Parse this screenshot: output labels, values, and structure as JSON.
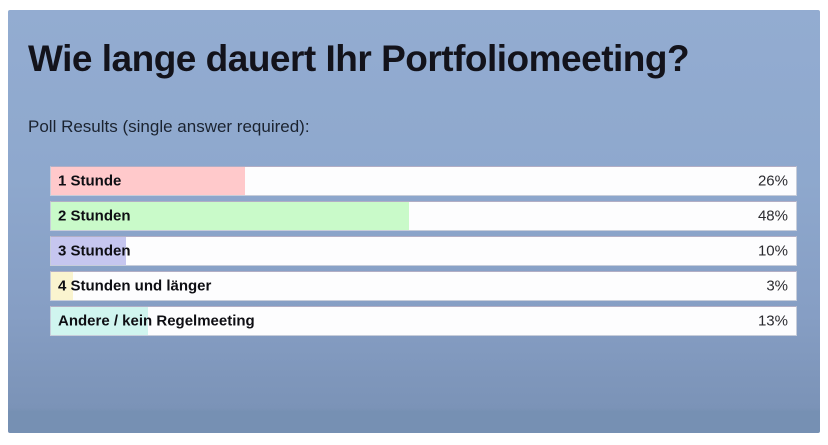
{
  "title": "Wie lange dauert Ihr Portfoliomeeting?",
  "subtitle": "Poll Results (single answer required):",
  "colors": {
    "panel_background_top": "#93acd1",
    "panel_background_bottom": "#7690b3",
    "frame_background": "#ffffff",
    "row_background": "#fdfdfe",
    "title_text": "#13131b",
    "bar_pink": "#ffc9cb",
    "bar_green": "#c9fac9",
    "bar_lavender": "#c6c6ef",
    "bar_yellow": "#faf4cf",
    "bar_cyan": "#d0f5ef"
  },
  "chart_data": {
    "type": "bar",
    "orientation": "horizontal",
    "title": "Wie lange dauert Ihr Portfoliomeeting?",
    "subtitle": "Poll Results (single answer required):",
    "categories": [
      "1 Stunde",
      "2 Stunden",
      "3 Stunden",
      "4 Stunden und länger",
      "Andere / kein Regelmeeting"
    ],
    "values": [
      26,
      48,
      10,
      3,
      13
    ],
    "unit": "%",
    "value_labels": [
      "26%",
      "48%",
      "10%",
      "3%",
      "13%"
    ],
    "bar_colors": [
      "#ffc9cb",
      "#c9fac9",
      "#c6c6ef",
      "#faf4cf",
      "#d0f5ef"
    ],
    "xlim": [
      0,
      100
    ],
    "grid": false,
    "legend": false,
    "value_label_position": "right-inside-bar-track"
  },
  "poll": {
    "options": [
      {
        "label": "1 Stunde",
        "value_label": "26%",
        "pct": 26,
        "color": "#ffc9cb",
        "fill_style": "width:26%;background-color:#ffc9cb;"
      },
      {
        "label": "2 Stunden",
        "value_label": "48%",
        "pct": 48,
        "color": "#c9fac9",
        "fill_style": "width:48%;background-color:#c9fac9;"
      },
      {
        "label": "3 Stunden",
        "value_label": "10%",
        "pct": 10,
        "color": "#c6c6ef",
        "fill_style": "width:10%;background-color:#c6c6ef;"
      },
      {
        "label": "4 Stunden und länger",
        "value_label": "3%",
        "pct": 3,
        "color": "#faf4cf",
        "fill_style": "width:3%;background-color:#faf4cf;"
      },
      {
        "label": "Andere / kein Regelmeeting",
        "value_label": "13%",
        "pct": 13,
        "color": "#d0f5ef",
        "fill_style": "width:13%;background-color:#d0f5ef;"
      }
    ]
  }
}
